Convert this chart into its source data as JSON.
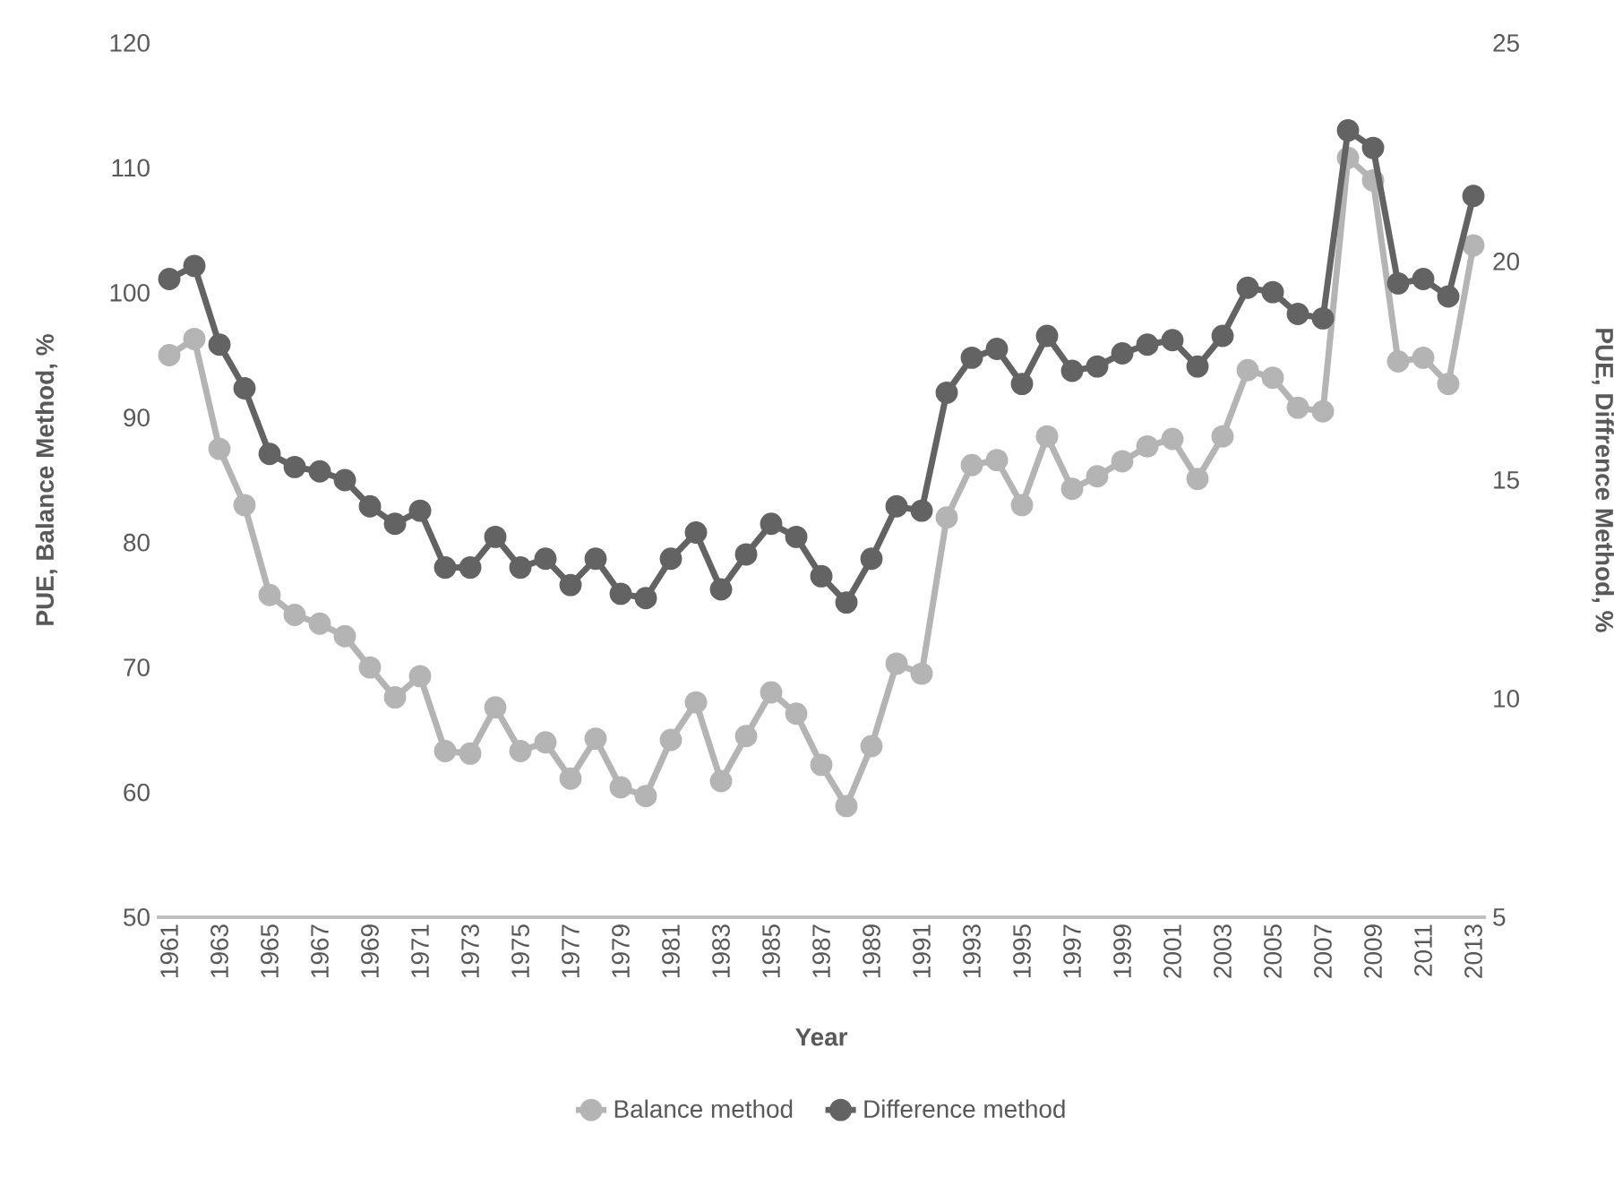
{
  "chart_data": {
    "type": "line",
    "xlabel": "Year",
    "ylabel": "PUE, Balance Method, %",
    "y2label": "PUE, Diffrence Method, %",
    "categories": [
      "1961",
      null,
      "1963",
      null,
      "1965",
      null,
      "1967",
      null,
      "1969",
      null,
      "1971",
      null,
      "1973",
      null,
      "1975",
      null,
      "1977",
      null,
      "1979",
      null,
      "1981",
      null,
      "1983",
      null,
      "1985",
      null,
      "1987",
      null,
      "1989",
      null,
      "1991",
      null,
      "1993",
      null,
      "1995",
      null,
      "1997",
      null,
      "1999",
      null,
      "2001",
      null,
      "2003",
      null,
      "2005",
      null,
      "2007",
      null,
      "2009",
      null,
      "2011",
      null,
      "2013"
    ],
    "series": [
      {
        "name": "Balance method",
        "color": "#b4b4b4",
        "values": [
          95,
          96.3,
          87.5,
          83,
          75.8,
          74.2,
          73.5,
          72.5,
          70,
          67.6,
          69.3,
          63.3,
          63.1,
          66.8,
          63.3,
          64,
          61.1,
          64.3,
          60.4,
          59.7,
          64.2,
          67.2,
          60.9,
          64.5,
          68,
          66.3,
          62.2,
          58.9,
          63.7,
          70.3,
          69.5,
          82,
          86.2,
          86.6,
          83,
          88.5,
          84.3,
          85.3,
          86.5,
          87.7,
          88.3,
          85.1,
          88.5,
          93.8,
          93.2,
          90.8,
          90.5,
          110.8,
          109,
          94.5,
          94.8,
          92.7,
          103.8
        ]
      },
      {
        "name": "Difference method",
        "color": "#636363",
        "axis": "y2",
        "values": [
          19.6,
          19.9,
          18.1,
          17.1,
          15.6,
          15.3,
          15.2,
          15,
          14.4,
          14,
          14.3,
          13,
          13,
          13.7,
          13,
          13.2,
          12.6,
          13.2,
          12.4,
          12.3,
          13.2,
          13.8,
          12.5,
          13.3,
          14,
          13.7,
          12.8,
          12.2,
          13.2,
          14.4,
          14.3,
          17,
          17.8,
          18,
          17.2,
          18.3,
          17.5,
          17.6,
          17.9,
          18.1,
          18.2,
          17.6,
          18.3,
          19.4,
          19.3,
          18.8,
          18.7,
          23,
          22.6,
          19.5,
          19.6,
          19.2,
          21.5
        ]
      }
    ],
    "ylim": [
      50,
      120
    ],
    "yticks": [
      50,
      60,
      70,
      80,
      90,
      100,
      110,
      120
    ],
    "y2lim": [
      5,
      25
    ],
    "y2ticks": [
      5,
      10,
      15,
      20,
      25
    ],
    "legend": "bottom",
    "marker": "circle"
  }
}
